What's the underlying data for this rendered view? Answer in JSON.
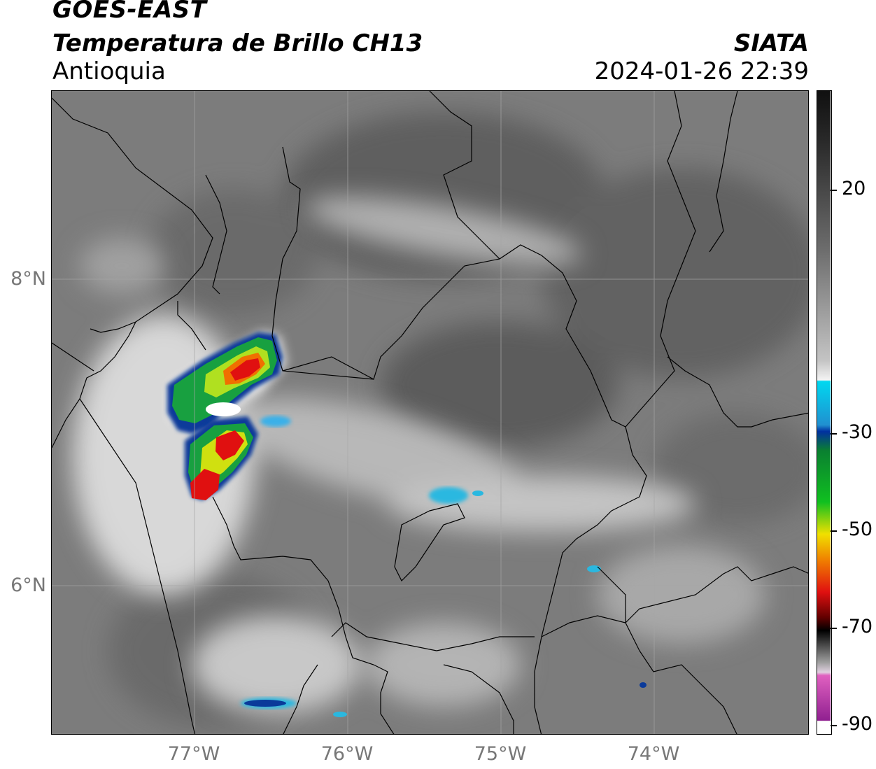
{
  "header": {
    "satellite": "GOES-EAST",
    "product": "Temperatura de Brillo CH13",
    "region": "Antioquia",
    "agency": "SIATA",
    "datetime": "2024-01-26 22:39"
  },
  "map": {
    "lat_labels": [
      "8°N",
      "6°N"
    ],
    "lon_labels": [
      "77°W",
      "76°W",
      "75°W",
      "74°W"
    ]
  },
  "colorbar": {
    "tick_labels": [
      "20",
      "-30",
      "-50",
      "-70",
      "-90"
    ],
    "colors": {
      "warm_gray_dark": "#5a5a5a",
      "light": "#f2f2f2",
      "cyan": "#00d8f0",
      "blue": "#0030a0",
      "green": "#10a030",
      "yellow": "#f0e000",
      "red": "#e01010",
      "black": "#000000",
      "pink": "#e060c0",
      "purple": "#902090"
    }
  }
}
